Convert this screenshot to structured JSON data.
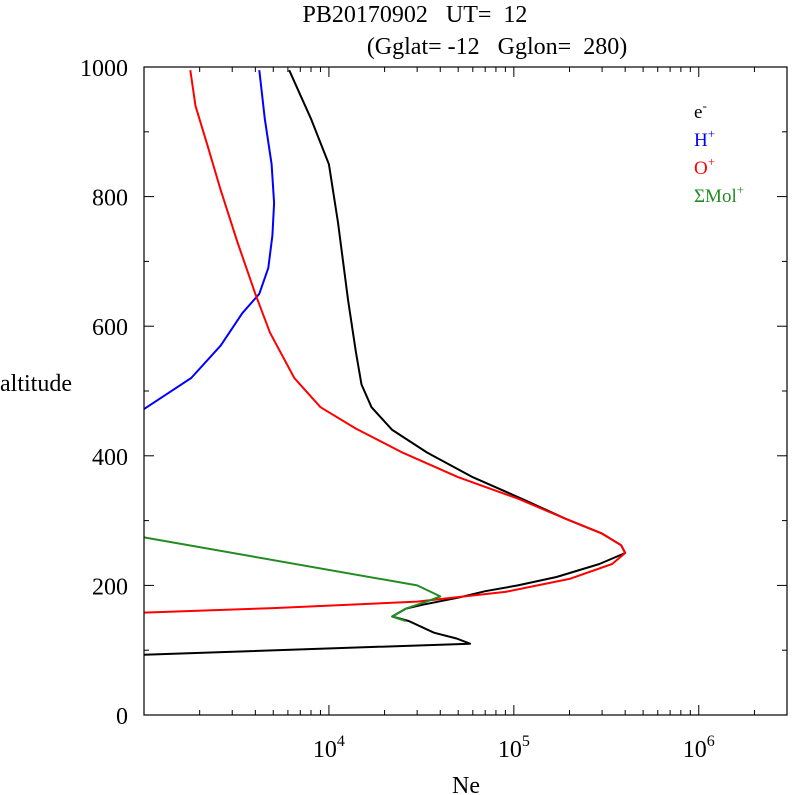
{
  "chart_data": {
    "type": "line",
    "title": "PB20170902   UT=  12",
    "subtitle": "(Gglat= -12   Gglon=  280)",
    "xlabel": "Ne",
    "ylabel": "altitude",
    "x_scale": "log",
    "xlim": [
      1000,
      3000000
    ],
    "ylim": [
      0,
      1000
    ],
    "x_ticks": [
      {
        "value": 10000,
        "base": "10",
        "exp": "4"
      },
      {
        "value": 100000,
        "base": "10",
        "exp": "5"
      },
      {
        "value": 1000000,
        "base": "10",
        "exp": "6"
      }
    ],
    "y_ticks": [
      "0",
      "200",
      "400",
      "600",
      "800",
      "1000"
    ],
    "y_tick_values": [
      0,
      200,
      400,
      600,
      800,
      1000
    ],
    "legend_position": "top-right",
    "grid": false,
    "series": [
      {
        "name": "e-",
        "legend_base": "e",
        "legend_sup": "-",
        "color": "#000000",
        "points": [
          [
            1000,
            93
          ],
          [
            58000,
            110
          ],
          [
            49000,
            118
          ],
          [
            37000,
            127
          ],
          [
            27000,
            145
          ],
          [
            22000,
            152
          ],
          [
            26000,
            164
          ],
          [
            32000,
            170
          ],
          [
            50000,
            181
          ],
          [
            70000,
            191
          ],
          [
            105000,
            200
          ],
          [
            170000,
            213
          ],
          [
            290000,
            233
          ],
          [
            400000,
            250
          ],
          [
            380000,
            262
          ],
          [
            300000,
            280
          ],
          [
            190000,
            303
          ],
          [
            110000,
            334
          ],
          [
            60000,
            367
          ],
          [
            34000,
            405
          ],
          [
            22000,
            440
          ],
          [
            17000,
            475
          ],
          [
            15000,
            510
          ],
          [
            14000,
            560
          ],
          [
            12700,
            640
          ],
          [
            11200,
            760
          ],
          [
            10000,
            850
          ],
          [
            8000,
            920
          ],
          [
            6100,
            995
          ]
        ]
      },
      {
        "name": "H+",
        "legend_base": "H",
        "legend_sup": "+",
        "color": "#0000ff",
        "points": [
          [
            1000,
            472
          ],
          [
            1800,
            520
          ],
          [
            2600,
            570
          ],
          [
            3400,
            620
          ],
          [
            4200,
            650
          ],
          [
            4700,
            690
          ],
          [
            4950,
            740
          ],
          [
            5050,
            790
          ],
          [
            4900,
            850
          ],
          [
            4500,
            920
          ],
          [
            4200,
            995
          ]
        ]
      },
      {
        "name": "O+",
        "legend_base": "O",
        "legend_sup": "+",
        "color": "#ff0000",
        "points": [
          [
            1000,
            158
          ],
          [
            5000,
            165
          ],
          [
            30000,
            175
          ],
          [
            90000,
            190
          ],
          [
            200000,
            210
          ],
          [
            340000,
            233
          ],
          [
            400000,
            250
          ],
          [
            380000,
            262
          ],
          [
            300000,
            280
          ],
          [
            190000,
            303
          ],
          [
            105000,
            334
          ],
          [
            50000,
            367
          ],
          [
            25000,
            405
          ],
          [
            14000,
            442
          ],
          [
            9000,
            475
          ],
          [
            6500,
            520
          ],
          [
            4800,
            590
          ],
          [
            4000,
            650
          ],
          [
            3200,
            730
          ],
          [
            2600,
            810
          ],
          [
            2200,
            880
          ],
          [
            1900,
            940
          ],
          [
            1780,
            995
          ]
        ]
      },
      {
        "name": "ΣMol+",
        "legend_base": "ΣMol",
        "legend_sup": "+",
        "color": "#228b22",
        "points": [
          [
            1000,
            274
          ],
          [
            30000,
            200
          ],
          [
            40000,
            183
          ],
          [
            33000,
            174
          ],
          [
            26000,
            164
          ],
          [
            22000,
            152
          ],
          [
            26000,
            145
          ]
        ]
      }
    ]
  }
}
